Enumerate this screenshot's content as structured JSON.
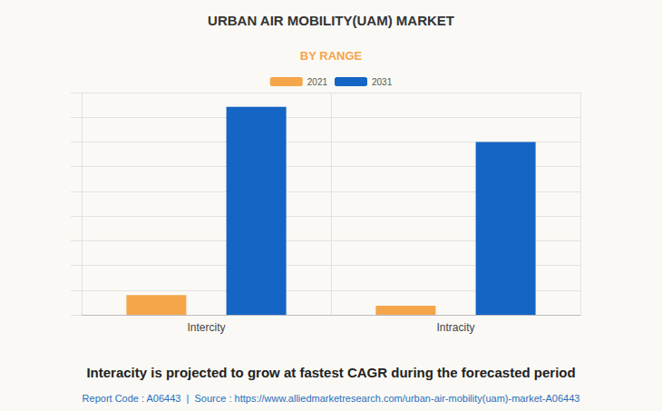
{
  "chart_data": {
    "type": "bar",
    "title": "URBAN AIR MOBILITY(UAM) MARKET",
    "subtitle": "BY RANGE",
    "categories": [
      "Intercity",
      "Intracity"
    ],
    "series": [
      {
        "name": "2021",
        "color": "#f5a54a",
        "values": [
          0.8,
          0.37
        ]
      },
      {
        "name": "2031",
        "color": "#1565c4",
        "values": [
          8.42,
          7.0
        ]
      }
    ],
    "ylim": [
      0,
      9
    ],
    "yticks": [
      0,
      1,
      2,
      3,
      4,
      5,
      6,
      7,
      8,
      9
    ],
    "grid": true,
    "legend": "top",
    "tick_labels": "x",
    "annotations": [
      "Interacity is projected to grow at fastest CAGR during the forecasted period",
      "Report Code : A06443  |  Source : https://www.alliedmarketresearch.com/urban-air-mobility(uam)-market-A06443"
    ]
  }
}
